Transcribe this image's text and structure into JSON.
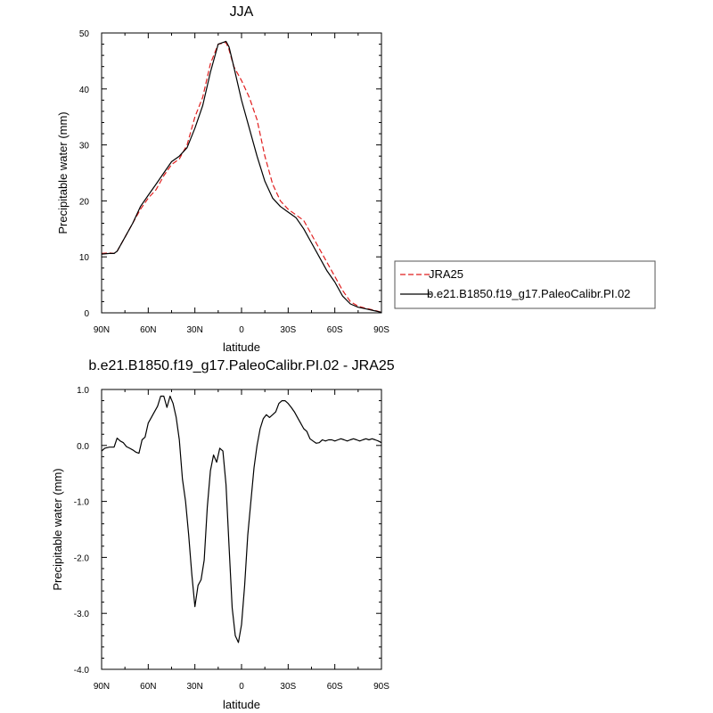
{
  "colors": {
    "line": "#000000",
    "jra25": "#e01e1e",
    "frame": "#000000"
  },
  "chart_data": [
    {
      "type": "line",
      "title": "JJA",
      "xlabel": "latitude",
      "ylabel": "Precipitable water (mm)",
      "xlim": [
        90,
        -90
      ],
      "ylim": [
        0,
        50
      ],
      "xticks": [
        90,
        60,
        30,
        0,
        -30,
        -60,
        -90
      ],
      "xticklabels": [
        "90N",
        "60N",
        "30N",
        "0",
        "30S",
        "60S",
        "90S"
      ],
      "yticks": [
        0,
        10,
        20,
        30,
        40,
        50
      ],
      "yticklabels": [
        "0",
        "10",
        "20",
        "30",
        "40",
        "50"
      ],
      "legend": {
        "placement": "right",
        "entries": [
          "JRA25",
          "b.e21.B1850.f19_g17.PaleoCalibr.PI.02"
        ]
      },
      "series": [
        {
          "name": "JRA25",
          "style": "dashed",
          "color": "#e01e1e",
          "x": [
            90,
            85,
            82,
            80,
            75,
            70,
            65,
            60,
            55,
            50,
            45,
            40,
            35,
            30,
            25,
            20,
            15,
            10,
            8,
            5,
            0,
            -5,
            -10,
            -15,
            -20,
            -25,
            -30,
            -35,
            -40,
            -45,
            -50,
            -55,
            -60,
            -65,
            -70,
            -75,
            -80,
            -85,
            -90
          ],
          "y": [
            10.6,
            10.7,
            10.6,
            11,
            13.5,
            16,
            18.5,
            20.5,
            22,
            24.5,
            26.5,
            27.5,
            30,
            35,
            38.5,
            44.5,
            48,
            48.3,
            47,
            44,
            41.5,
            38.5,
            34.5,
            28,
            23,
            20,
            18.5,
            17.5,
            16.5,
            14,
            11.5,
            9,
            6.5,
            4,
            2,
            1.2,
            0.8,
            0.5,
            0.1
          ]
        },
        {
          "name": "b.e21.B1850.f19_g17.PaleoCalibr.PI.02",
          "style": "solid",
          "color": "#000000",
          "x": [
            90,
            85,
            82,
            80,
            75,
            70,
            65,
            60,
            55,
            50,
            45,
            40,
            35,
            30,
            25,
            20,
            15,
            10,
            8,
            5,
            0,
            -5,
            -10,
            -15,
            -20,
            -25,
            -30,
            -35,
            -40,
            -45,
            -50,
            -55,
            -60,
            -65,
            -70,
            -75,
            -80,
            -85,
            -90
          ],
          "y": [
            10.5,
            10.6,
            10.6,
            11,
            13.5,
            16,
            19,
            21,
            23,
            25,
            27,
            28,
            29.5,
            33,
            37,
            43,
            48,
            48.5,
            47.5,
            44,
            38,
            33,
            28,
            23.5,
            20.5,
            19,
            18,
            17,
            15,
            12.5,
            10,
            7.5,
            5.5,
            3,
            1.6,
            1,
            0.7,
            0.4,
            0.1
          ]
        }
      ]
    },
    {
      "type": "line",
      "title": "b.e21.B1850.f19_g17.PaleoCalibr.PI.02 - JRA25",
      "xlabel": "latitude",
      "ylabel": "Precipitable water (mm)",
      "xlim": [
        90,
        -90
      ],
      "ylim": [
        -4,
        1
      ],
      "xticks": [
        90,
        60,
        30,
        0,
        -30,
        -60,
        -90
      ],
      "xticklabels": [
        "90N",
        "60N",
        "30N",
        "0",
        "30S",
        "60S",
        "90S"
      ],
      "yticks": [
        1,
        0,
        -1,
        -2,
        -3,
        -4
      ],
      "yticklabels": [
        "1.0",
        "0.0",
        "-1.0",
        "-2.0",
        "-3.0",
        "-4.0"
      ],
      "series": [
        {
          "style": "solid",
          "color": "#000000",
          "x": [
            90,
            88,
            85,
            82,
            80,
            78,
            76,
            74,
            72,
            70,
            68,
            66,
            64,
            62,
            60,
            58,
            56,
            54,
            52,
            50,
            48,
            46,
            44,
            42,
            40,
            38,
            36,
            34,
            32,
            30,
            28,
            26,
            24,
            22,
            20,
            18,
            16,
            14,
            12,
            10,
            8,
            6,
            4,
            2,
            0,
            -2,
            -4,
            -6,
            -8,
            -10,
            -12,
            -14,
            -16,
            -18,
            -20,
            -22,
            -24,
            -26,
            -28,
            -30,
            -32,
            -34,
            -36,
            -38,
            -40,
            -42,
            -44,
            -46,
            -48,
            -50,
            -52,
            -54,
            -56,
            -58,
            -60,
            -62,
            -64,
            -66,
            -68,
            -70,
            -72,
            -74,
            -76,
            -78,
            -80,
            -82,
            -84,
            -86,
            -88,
            -90
          ],
          "y": [
            -0.1,
            -0.05,
            -0.03,
            -0.03,
            0.13,
            0.08,
            0.05,
            -0.02,
            -0.05,
            -0.08,
            -0.12,
            -0.14,
            0.1,
            0.15,
            0.4,
            0.5,
            0.6,
            0.7,
            0.88,
            0.88,
            0.68,
            0.88,
            0.75,
            0.5,
            0.1,
            -0.6,
            -1.0,
            -1.6,
            -2.3,
            -2.88,
            -2.5,
            -2.4,
            -2.05,
            -1.1,
            -0.45,
            -0.17,
            -0.3,
            -0.05,
            -0.1,
            -0.7,
            -1.8,
            -2.9,
            -3.4,
            -3.52,
            -3.2,
            -2.5,
            -1.6,
            -1.0,
            -0.4,
            0.0,
            0.3,
            0.48,
            0.55,
            0.5,
            0.55,
            0.6,
            0.75,
            0.8,
            0.8,
            0.75,
            0.68,
            0.6,
            0.5,
            0.4,
            0.3,
            0.25,
            0.12,
            0.08,
            0.04,
            0.05,
            0.1,
            0.08,
            0.1,
            0.1,
            0.08,
            0.1,
            0.12,
            0.1,
            0.08,
            0.1,
            0.12,
            0.1,
            0.08,
            0.1,
            0.12,
            0.1,
            0.12,
            0.1,
            0.08,
            0.05
          ]
        }
      ]
    }
  ]
}
